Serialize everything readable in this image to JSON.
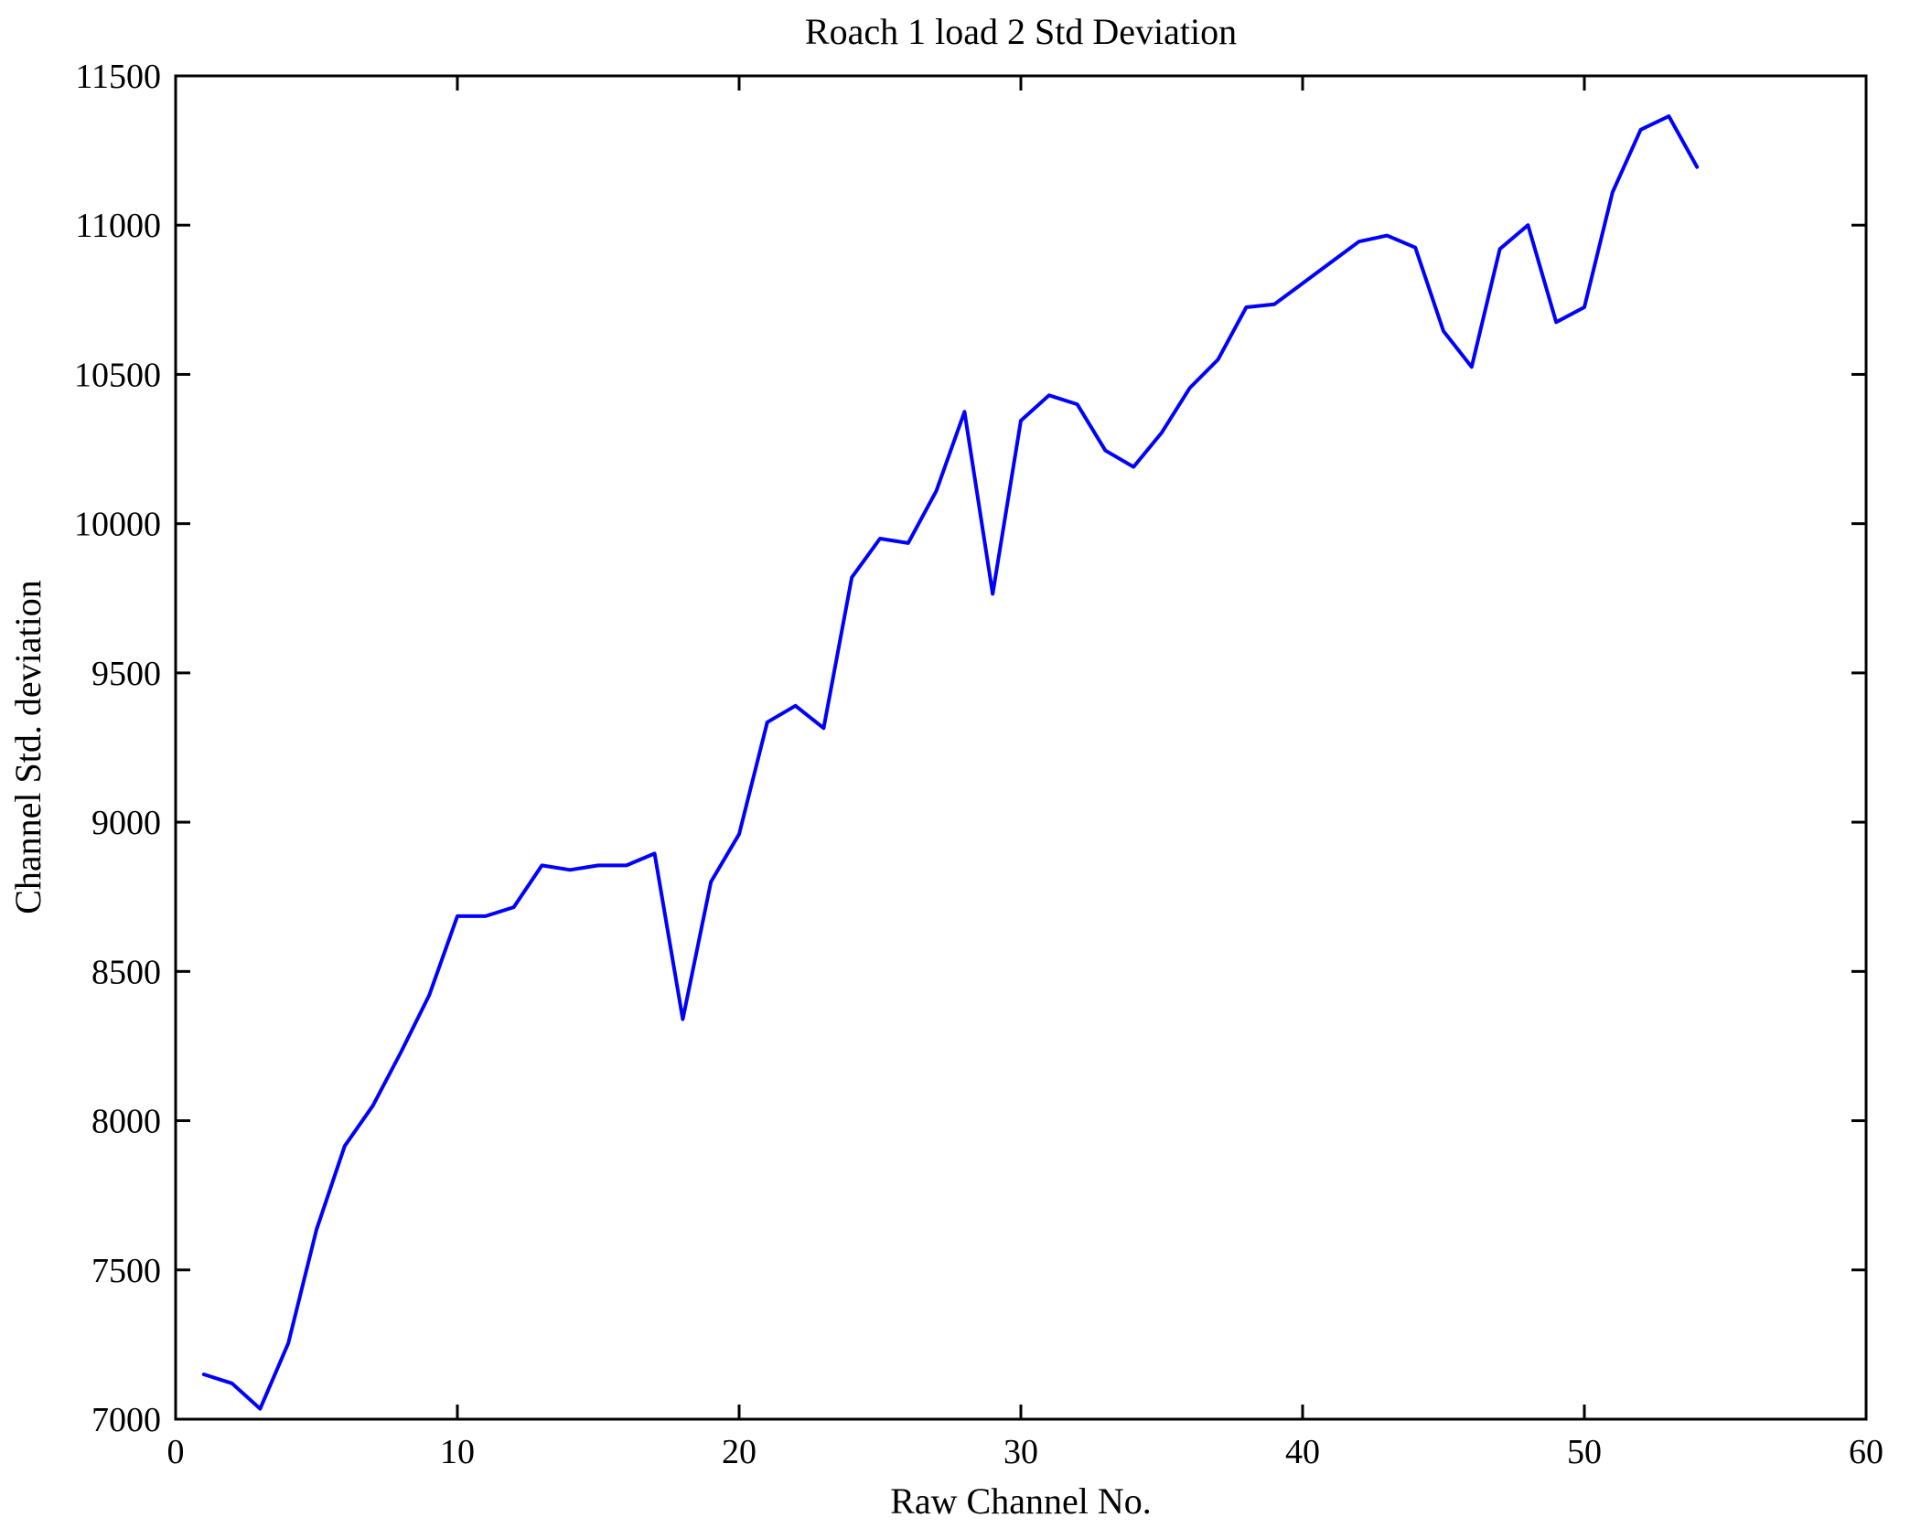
{
  "chart_data": {
    "type": "line",
    "title": "Roach 1 load 2 Std Deviation",
    "xlabel": "Raw Channel No.",
    "ylabel": "Channel Std. deviation",
    "xlim": [
      0,
      60
    ],
    "ylim": [
      7000,
      11500
    ],
    "xticks": [
      0,
      10,
      20,
      30,
      40,
      50,
      60
    ],
    "yticks": [
      7000,
      7500,
      8000,
      8500,
      9000,
      9500,
      10000,
      10500,
      11000,
      11500
    ],
    "grid": false,
    "legend_position": "none",
    "line_color": "#0000ff",
    "axis_color": "#000000",
    "background_color": "#ffffff",
    "x": [
      1,
      2,
      3,
      4,
      5,
      6,
      7,
      8,
      9,
      10,
      11,
      12,
      13,
      14,
      15,
      16,
      17,
      18,
      19,
      20,
      21,
      22,
      23,
      24,
      25,
      26,
      27,
      28,
      29,
      30,
      31,
      32,
      33,
      34,
      35,
      36,
      37,
      38,
      39,
      40,
      41,
      42,
      43,
      44,
      45,
      46,
      47,
      48,
      49,
      50,
      51,
      52,
      53,
      54
    ],
    "values": [
      7150,
      7120,
      7035,
      7255,
      7635,
      7915,
      8050,
      8230,
      8420,
      8685,
      8685,
      8715,
      8855,
      8840,
      8855,
      8855,
      8895,
      8340,
      8800,
      8960,
      9335,
      9390,
      9315,
      9820,
      9950,
      9935,
      10110,
      10375,
      9765,
      10345,
      10430,
      10400,
      10245,
      10190,
      10305,
      10455,
      10550,
      10725,
      10735,
      10805,
      10875,
      10945,
      10965,
      10925,
      10645,
      10525,
      10920,
      11000,
      10675,
      10725,
      11110,
      11320,
      11365,
      11195
    ]
  }
}
